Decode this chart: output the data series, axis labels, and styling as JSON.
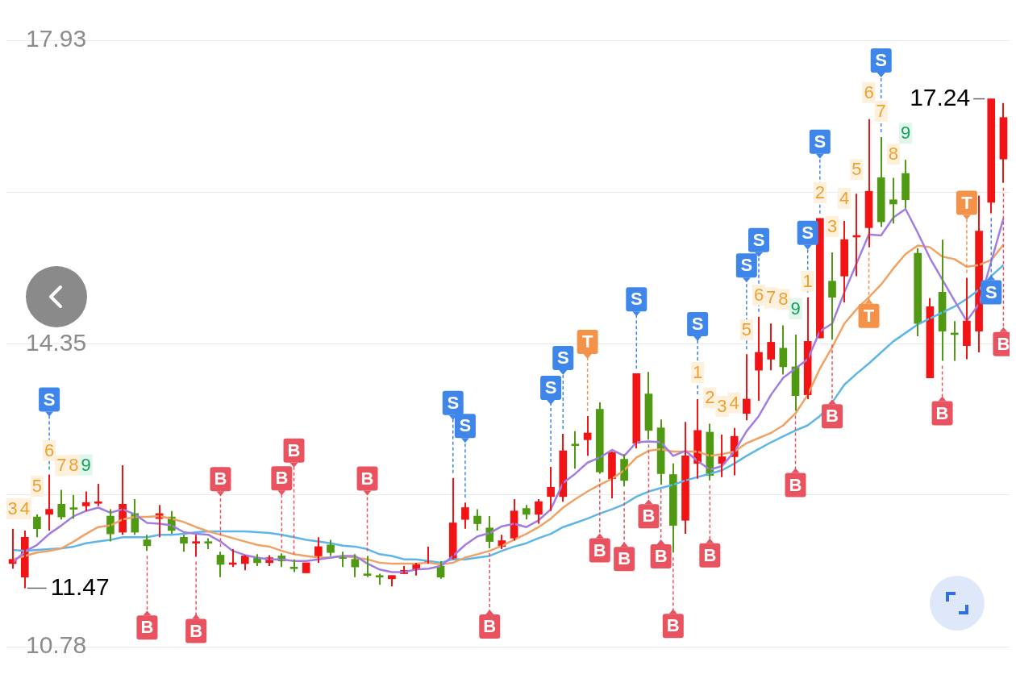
{
  "chart_data": {
    "type": "candlestick",
    "categories": [
      null,
      null,
      null,
      null,
      null,
      null,
      null,
      null,
      null,
      null,
      null,
      null,
      null,
      null,
      null,
      null,
      null,
      null,
      null,
      null,
      null,
      null,
      null,
      null,
      null,
      null,
      null,
      null,
      null,
      null,
      null,
      null,
      null,
      null,
      null,
      null,
      null,
      null,
      null,
      null,
      null,
      null,
      null,
      null,
      null,
      null,
      null,
      null,
      null,
      null,
      null,
      null,
      null,
      null,
      null,
      null,
      null,
      null,
      null,
      null,
      null,
      null,
      null,
      null,
      null,
      null,
      null,
      null,
      null,
      null,
      null,
      null,
      null,
      null,
      null,
      null,
      null,
      null,
      null,
      null,
      null,
      null
    ],
    "ohlc": [
      [
        11.76,
        12.17,
        11.7,
        11.81
      ],
      [
        11.6,
        12.15,
        11.47,
        12.07
      ],
      [
        12.31,
        12.34,
        12.07,
        12.17
      ],
      [
        12.34,
        12.81,
        12.15,
        12.4
      ],
      [
        12.46,
        12.63,
        12.28,
        12.31
      ],
      [
        12.41,
        12.57,
        12.29,
        12.4
      ],
      [
        12.44,
        12.61,
        12.38,
        12.48
      ],
      [
        12.47,
        12.7,
        12.44,
        12.48
      ],
      [
        12.32,
        12.4,
        12.02,
        12.11
      ],
      [
        12.13,
        12.92,
        12.1,
        12.46
      ],
      [
        12.35,
        12.52,
        12.1,
        12.13
      ],
      [
        12.04,
        12.1,
        11.91,
        11.97
      ],
      [
        12.29,
        12.45,
        12.07,
        12.35
      ],
      [
        12.31,
        12.38,
        12.11,
        12.15
      ],
      [
        12.07,
        12.1,
        11.9,
        12.0
      ],
      [
        12.0,
        12.1,
        11.84,
        12.01
      ],
      [
        12.01,
        12.06,
        11.93,
        12.0
      ],
      [
        11.86,
        11.9,
        11.6,
        11.75
      ],
      [
        11.75,
        11.93,
        11.72,
        11.76
      ],
      [
        11.76,
        11.86,
        11.68,
        11.85
      ],
      [
        11.83,
        11.87,
        11.73,
        11.77
      ],
      [
        11.77,
        11.86,
        11.73,
        11.83
      ],
      [
        11.85,
        11.88,
        11.72,
        11.79
      ],
      [
        11.71,
        11.81,
        11.66,
        11.7
      ],
      [
        11.65,
        11.77,
        11.65,
        11.77
      ],
      [
        11.85,
        12.07,
        11.77,
        11.96
      ],
      [
        11.98,
        12.04,
        11.85,
        11.89
      ],
      [
        11.83,
        11.9,
        11.72,
        11.82
      ],
      [
        11.81,
        11.87,
        11.6,
        11.72
      ],
      [
        11.63,
        11.85,
        11.6,
        11.62
      ],
      [
        11.61,
        11.64,
        11.51,
        11.6
      ],
      [
        11.58,
        11.62,
        11.49,
        11.62
      ],
      [
        11.64,
        11.73,
        11.64,
        11.68
      ],
      [
        11.69,
        11.77,
        11.62,
        11.76
      ],
      [
        11.77,
        11.96,
        11.76,
        11.78
      ],
      [
        11.73,
        11.79,
        11.58,
        11.6
      ],
      [
        11.81,
        12.77,
        11.81,
        12.24
      ],
      [
        12.28,
        12.48,
        12.17,
        12.42
      ],
      [
        12.32,
        12.4,
        12.15,
        12.23
      ],
      [
        12.18,
        12.32,
        11.94,
        12.02
      ],
      [
        11.96,
        12.1,
        11.93,
        12.03
      ],
      [
        12.06,
        12.52,
        12.03,
        12.38
      ],
      [
        12.41,
        12.45,
        12.28,
        12.34
      ],
      [
        12.34,
        12.52,
        12.23,
        12.49
      ],
      [
        12.55,
        12.9,
        12.38,
        12.66
      ],
      [
        12.55,
        13.29,
        12.49,
        13.09
      ],
      [
        13.16,
        13.32,
        12.88,
        13.15
      ],
      [
        13.22,
        13.5,
        13.03,
        13.3
      ],
      [
        13.58,
        13.66,
        12.82,
        12.84
      ],
      [
        12.76,
        13.08,
        12.53,
        13.07
      ],
      [
        12.99,
        13.05,
        12.67,
        12.74
      ],
      [
        13.18,
        14.0,
        13.12,
        14.0
      ],
      [
        13.76,
        14.02,
        13.22,
        13.33
      ],
      [
        13.36,
        13.46,
        12.69,
        12.82
      ],
      [
        12.81,
        12.94,
        11.89,
        12.21
      ],
      [
        12.27,
        13.43,
        12.11,
        13.03
      ],
      [
        12.94,
        13.7,
        12.76,
        13.33
      ],
      [
        13.31,
        13.41,
        12.74,
        12.8
      ],
      [
        12.94,
        13.28,
        12.78,
        13.02
      ],
      [
        13.02,
        13.36,
        12.8,
        13.26
      ],
      [
        13.53,
        14.23,
        13.45,
        13.7
      ],
      [
        14.04,
        14.67,
        13.68,
        14.25
      ],
      [
        14.17,
        14.59,
        14.04,
        14.37
      ],
      [
        14.3,
        14.57,
        13.99,
        14.08
      ],
      [
        14.08,
        14.46,
        13.56,
        13.74
      ],
      [
        13.75,
        14.9,
        13.7,
        14.38
      ],
      [
        14.42,
        15.83,
        14.42,
        15.83
      ],
      [
        15.09,
        15.43,
        14.4,
        14.9
      ],
      [
        15.15,
        15.8,
        14.84,
        15.58
      ],
      [
        15.61,
        16.12,
        15.15,
        15.62
      ],
      [
        15.72,
        17.0,
        15.49,
        16.15
      ],
      [
        16.31,
        16.79,
        15.73,
        15.79
      ],
      [
        16.05,
        16.31,
        15.77,
        16.0
      ],
      [
        16.36,
        16.52,
        15.95,
        16.05
      ],
      [
        15.42,
        15.48,
        14.44,
        14.59
      ],
      [
        13.95,
        14.89,
        13.95,
        14.79
      ],
      [
        14.96,
        15.58,
        14.15,
        14.5
      ],
      [
        14.47,
        14.62,
        14.15,
        14.46
      ],
      [
        14.33,
        15.13,
        14.17,
        14.62
      ],
      [
        14.5,
        16.1,
        14.25,
        15.68
      ],
      [
        16.02,
        17.24,
        15.89,
        17.24
      ],
      [
        16.53,
        17.19,
        16.25,
        17.02
      ]
    ],
    "series": [
      {
        "type": "line",
        "color": "#a17de3",
        "values": [
          11.77,
          11.9,
          11.98,
          12.11,
          12.21,
          12.32,
          12.38,
          12.42,
          12.36,
          12.4,
          12.34,
          12.24,
          12.23,
          12.21,
          12.13,
          12.11,
          12.1,
          12.02,
          11.91,
          11.86,
          11.83,
          11.81,
          11.81,
          11.79,
          11.79,
          11.81,
          11.83,
          11.85,
          11.85,
          11.76,
          11.69,
          11.66,
          11.66,
          11.69,
          11.7,
          11.73,
          11.85,
          11.98,
          12.08,
          12.12,
          12.2,
          12.23,
          12.19,
          12.27,
          12.4,
          12.71,
          12.82,
          12.95,
          13.01,
          13.1,
          13.03,
          13.19,
          13.2,
          13.19,
          13.03,
          13.09,
          12.97,
          12.87,
          12.91,
          13.08,
          13.32,
          13.5,
          13.75,
          13.95,
          14.06,
          14.17,
          14.5,
          14.59,
          14.96,
          15.3,
          15.64,
          15.63,
          15.84,
          15.94,
          15.66,
          15.36,
          15.11,
          14.86,
          14.62,
          14.82,
          15.32,
          15.83
        ]
      },
      {
        "type": "line",
        "color": "#f0a264",
        "values": [
          11.81,
          11.85,
          11.89,
          11.91,
          11.94,
          12.02,
          12.11,
          12.19,
          12.21,
          12.28,
          12.31,
          12.31,
          12.32,
          12.29,
          12.25,
          12.19,
          12.14,
          12.1,
          12.06,
          12.02,
          11.98,
          11.96,
          11.91,
          11.87,
          11.85,
          11.83,
          11.83,
          11.85,
          11.83,
          11.81,
          11.77,
          11.76,
          11.76,
          11.76,
          11.77,
          11.75,
          11.77,
          11.83,
          11.87,
          11.91,
          11.97,
          12.04,
          12.11,
          12.19,
          12.29,
          12.42,
          12.52,
          12.61,
          12.69,
          12.76,
          12.86,
          13.01,
          13.09,
          13.11,
          13.08,
          13.08,
          13.08,
          13.03,
          13.05,
          13.08,
          13.18,
          13.24,
          13.3,
          13.39,
          13.53,
          13.75,
          14.06,
          14.31,
          14.59,
          14.76,
          14.9,
          15.05,
          15.24,
          15.41,
          15.51,
          15.49,
          15.38,
          15.35,
          15.26,
          15.28,
          15.34,
          15.52
        ]
      },
      {
        "type": "line",
        "color": "#5cb6ea",
        "values": [
          11.92,
          11.91,
          11.92,
          11.93,
          11.94,
          11.96,
          12.0,
          12.02,
          12.04,
          12.07,
          12.07,
          12.07,
          12.1,
          12.1,
          12.11,
          12.13,
          12.14,
          12.14,
          12.14,
          12.14,
          12.13,
          12.12,
          12.1,
          12.07,
          12.04,
          12.02,
          12.0,
          11.97,
          11.96,
          11.93,
          11.87,
          11.85,
          11.81,
          11.81,
          11.79,
          11.77,
          11.81,
          11.81,
          11.83,
          11.85,
          11.91,
          11.96,
          12.0,
          12.06,
          12.11,
          12.19,
          12.24,
          12.29,
          12.35,
          12.4,
          12.46,
          12.55,
          12.61,
          12.65,
          12.69,
          12.74,
          12.78,
          12.82,
          12.86,
          12.94,
          13.03,
          13.11,
          13.19,
          13.26,
          13.33,
          13.39,
          13.5,
          13.66,
          13.87,
          14.0,
          14.12,
          14.25,
          14.38,
          14.48,
          14.58,
          14.65,
          14.72,
          14.79,
          14.88,
          14.99,
          15.15,
          15.28
        ]
      }
    ],
    "ylim": [
      10.78,
      17.93
    ],
    "yticks": [
      10.78,
      {
        "value": 12.57,
        "label": null
      },
      14.35,
      {
        "value": 16.14,
        "label": null
      },
      17.93
    ],
    "grid": "y",
    "tick_labels": "y",
    "legend": false,
    "annotations": [
      "3",
      "4",
      "5",
      "6",
      "S",
      "7",
      "8",
      "9",
      "B",
      "B",
      "B",
      "B",
      "B",
      "B",
      "S",
      "S",
      "B",
      "S",
      "S",
      "T",
      "B",
      "B",
      "S",
      "B",
      "B",
      "B",
      "1",
      "S",
      "2",
      "B",
      "3",
      "4",
      "5",
      "S",
      "6",
      "S",
      "7",
      "8",
      "9",
      "B",
      "1",
      "S",
      "2",
      "S",
      "3",
      "B",
      "4",
      "5",
      "6",
      "T",
      "7",
      "S",
      "8",
      "9",
      "B",
      "T",
      "17.24",
      "S",
      "B",
      "11.47"
    ]
  }
}
